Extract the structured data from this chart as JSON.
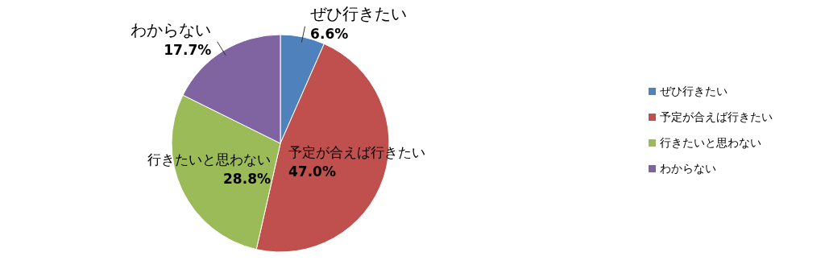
{
  "chart_data": {
    "type": "pie",
    "categories": [
      "ぜひ行きたい",
      "予定が合えば行きたい",
      "行きたいと思わない",
      "わからない"
    ],
    "values": [
      6.6,
      47.0,
      28.8,
      17.7
    ],
    "value_labels": [
      "6.6%",
      "47.0%",
      "28.8%",
      "17.7%"
    ],
    "colors": [
      "#4f81bd",
      "#c0504d",
      "#9bbb59",
      "#8064a2"
    ],
    "legend": "right"
  }
}
